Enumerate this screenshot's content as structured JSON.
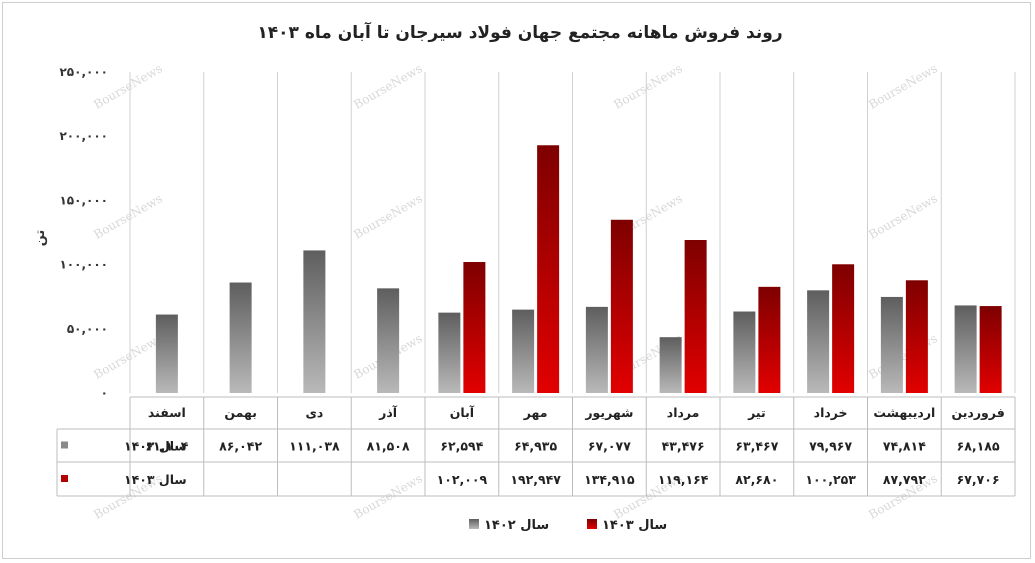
{
  "watermark": "BourseNews",
  "chart_data": {
    "type": "bar",
    "title": "روند فروش ماهانه مجتمع جهان فولاد سیرجان تا آبان ماه ۱۴۰۳",
    "ylabel": "تن",
    "ylim": [
      0,
      250000
    ],
    "yticks": [
      0,
      50000,
      100000,
      150000,
      200000,
      250000
    ],
    "ytick_labels": [
      "۰",
      "۵۰,۰۰۰",
      "۱۰۰,۰۰۰",
      "۱۵۰,۰۰۰",
      "۲۰۰,۰۰۰",
      "۲۵۰,۰۰۰"
    ],
    "grid": true,
    "legend_position": "bottom",
    "categories": [
      "فروردین",
      "اردیبهشت",
      "خرداد",
      "تیر",
      "مرداد",
      "شهریور",
      "مهر",
      "آبان",
      "آذر",
      "دی",
      "بهمن",
      "اسفند"
    ],
    "series": [
      {
        "name": "سال ۱۴۰۲",
        "color": "#8a8a8a",
        "values": [
          68185,
          74814,
          79967,
          63467,
          43476,
          67077,
          64935,
          62594,
          81508,
          111038,
          86042,
          61104
        ],
        "labels": [
          "۶۸,۱۸۵",
          "۷۴,۸۱۴",
          "۷۹,۹۶۷",
          "۶۳,۴۶۷",
          "۴۳,۴۷۶",
          "۶۷,۰۷۷",
          "۶۴,۹۳۵",
          "۶۲,۵۹۴",
          "۸۱,۵۰۸",
          "۱۱۱,۰۳۸",
          "۸۶,۰۴۲",
          "۶۱,۱۰۴"
        ]
      },
      {
        "name": "سال ۱۴۰۳",
        "color": "#b30000",
        "values": [
          67706,
          87792,
          100253,
          82680,
          119164,
          134915,
          192947,
          102009,
          null,
          null,
          null,
          null
        ],
        "labels": [
          "۶۷,۷۰۶",
          "۸۷,۷۹۲",
          "۱۰۰,۲۵۳",
          "۸۲,۶۸۰",
          "۱۱۹,۱۶۴",
          "۱۳۴,۹۱۵",
          "۱۹۲,۹۴۷",
          "۱۰۲,۰۰۹",
          "",
          "",
          "",
          ""
        ]
      }
    ]
  }
}
